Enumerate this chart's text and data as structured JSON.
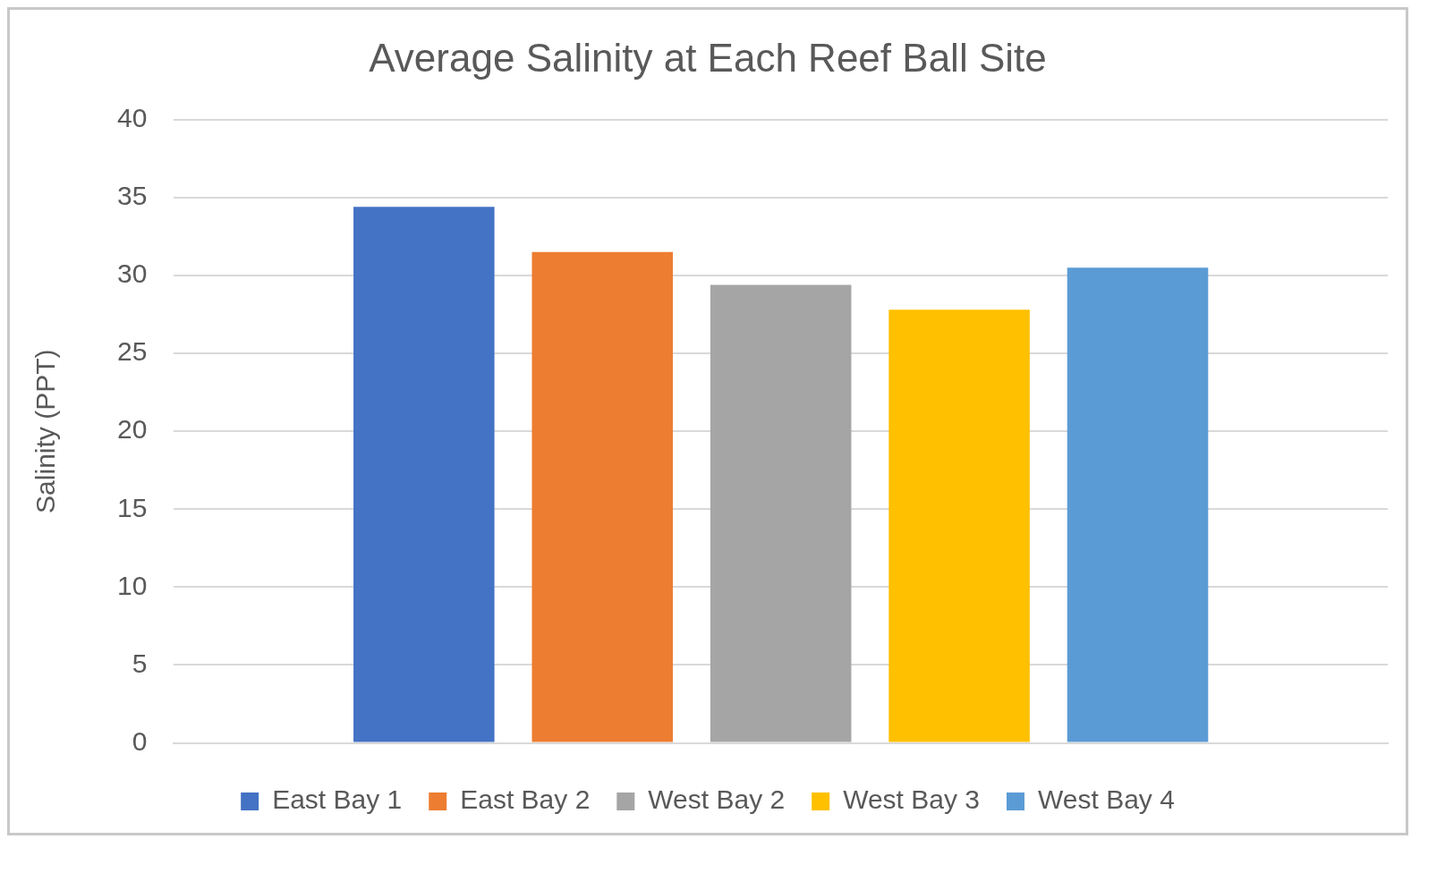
{
  "chart_data": {
    "type": "bar",
    "title": "Average Salinity at Each Reef Ball Site",
    "ylabel": "Salinity (PPT)",
    "categories": [
      null
    ],
    "series": [
      {
        "name": "East Bay 1",
        "color": "#4472c4",
        "values": [
          34.4
        ]
      },
      {
        "name": "East Bay 2",
        "color": "#ed7d31",
        "values": [
          31.5
        ]
      },
      {
        "name": "West Bay 2",
        "color": "#a5a5a5",
        "values": [
          29.4
        ]
      },
      {
        "name": "West Bay 3",
        "color": "#ffc000",
        "values": [
          27.8
        ]
      },
      {
        "name": "West Bay 4",
        "color": "#5b9bd5",
        "values": [
          30.5
        ]
      }
    ],
    "ylim": [
      0,
      40
    ],
    "yticks": [
      0,
      5,
      10,
      15,
      20,
      25,
      30,
      35,
      40
    ],
    "grid": "y",
    "legend": "bottom"
  }
}
